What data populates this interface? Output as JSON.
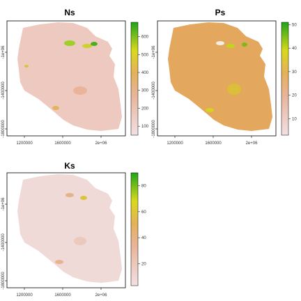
{
  "panels": [
    {
      "title": "Ns",
      "x_ticks": [
        "1200000",
        "1600000",
        "2e+06"
      ],
      "y_ticks": [
        "-1e+06",
        "-1400000",
        "-1800000"
      ],
      "colorbar_ticks": [
        "100",
        "200",
        "300",
        "400",
        "500",
        "600"
      ],
      "colorbar_range": [
        50,
        680
      ]
    },
    {
      "title": "Ps",
      "x_ticks": [
        "1200000",
        "1600000",
        "2e+06"
      ],
      "y_ticks": [
        "-1e+06",
        "-1400000",
        "-1800000"
      ],
      "colorbar_ticks": [
        "10",
        "20",
        "30",
        "40",
        "50"
      ],
      "colorbar_range": [
        3,
        51
      ]
    },
    {
      "title": "Ks",
      "x_ticks": [
        "1200000",
        "1600000",
        "2e+06"
      ],
      "y_ticks": [
        "-1e+06",
        "-1400000",
        "-1800000"
      ],
      "colorbar_ticks": [
        "20",
        "40",
        "60",
        "80"
      ],
      "colorbar_range": [
        3,
        90
      ]
    }
  ],
  "colors": {
    "low": "#f2e0e3",
    "mid_low": "#e8a78e",
    "mid": "#e6a55a",
    "mid_high": "#dfd91e",
    "high": "#1fa41a"
  }
}
